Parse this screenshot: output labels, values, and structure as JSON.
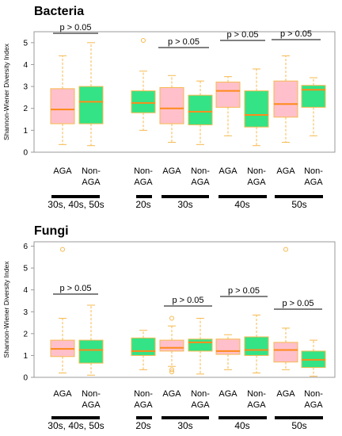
{
  "colors": {
    "aga_fill": "#ffc0cb",
    "nonaga_fill": "#33e386",
    "box_edge": "#f6b94e",
    "whisker": "#f6b94e",
    "median": "#ff8a1a",
    "outlier": "#f6b94e",
    "frame": "#999999"
  },
  "chart_data": [
    {
      "type": "box",
      "title": "Bacteria",
      "ylabel": "Shannon-Wiener Diversity Index",
      "ylim": [
        0,
        5.5
      ],
      "yticks": [
        "0",
        "1",
        "2",
        "3",
        "4",
        "5"
      ],
      "boxes": [
        {
          "label": "AGA",
          "group": "aga",
          "min": 0.35,
          "q1": 1.3,
          "median": 1.95,
          "q3": 2.9,
          "max": 4.4,
          "outliers": []
        },
        {
          "label": "Non-AGA",
          "group": "nonaga",
          "min": 0.3,
          "q1": 1.3,
          "median": 2.3,
          "q3": 3.0,
          "max": 5.0,
          "outliers": []
        },
        {
          "label": "Non-AGA",
          "group": "nonaga",
          "min": 1.0,
          "q1": 1.8,
          "median": 2.25,
          "q3": 2.8,
          "max": 3.7,
          "outliers": [
            5.1
          ]
        },
        {
          "label": "AGA",
          "group": "aga",
          "min": 0.45,
          "q1": 1.3,
          "median": 2.0,
          "q3": 2.95,
          "max": 3.5,
          "outliers": []
        },
        {
          "label": "Non-AGA",
          "group": "nonaga",
          "min": 0.35,
          "q1": 1.25,
          "median": 1.85,
          "q3": 2.6,
          "max": 3.25,
          "outliers": []
        },
        {
          "label": "AGA",
          "group": "aga",
          "min": 0.75,
          "q1": 2.05,
          "median": 2.8,
          "q3": 3.2,
          "max": 3.45,
          "outliers": []
        },
        {
          "label": "Non-AGA",
          "group": "nonaga",
          "min": 0.3,
          "q1": 1.15,
          "median": 1.7,
          "q3": 2.8,
          "max": 3.8,
          "outliers": []
        },
        {
          "label": "AGA",
          "group": "aga",
          "min": 0.45,
          "q1": 1.6,
          "median": 2.2,
          "q3": 3.25,
          "max": 4.4,
          "outliers": []
        },
        {
          "label": "Non-AGA",
          "group": "nonaga",
          "min": 0.75,
          "q1": 2.05,
          "median": 2.85,
          "q3": 3.05,
          "max": 3.4,
          "outliers": []
        }
      ],
      "comparisons": [
        "p > 0.05",
        "p > 0.05",
        "p > 0.05",
        "p > 0.05"
      ],
      "groups": [
        "30s, 40s, 50s",
        "20s",
        "30s",
        "40s",
        "50s"
      ]
    },
    {
      "type": "box",
      "title": "Fungi",
      "ylabel": "Shannon-Wiener Diversity Index",
      "ylim": [
        0,
        6.2
      ],
      "yticks": [
        "0",
        "1",
        "2",
        "3",
        "4",
        "5",
        "6"
      ],
      "boxes": [
        {
          "label": "AGA",
          "group": "aga",
          "min": 0.2,
          "q1": 0.95,
          "median": 1.3,
          "q3": 1.7,
          "max": 2.7,
          "outliers": [
            5.85
          ]
        },
        {
          "label": "Non-AGA",
          "group": "nonaga",
          "min": 0.1,
          "q1": 0.65,
          "median": 1.25,
          "q3": 1.7,
          "max": 3.3,
          "outliers": []
        },
        {
          "label": "Non-AGA",
          "group": "nonaga",
          "min": 0.35,
          "q1": 1.0,
          "median": 1.2,
          "q3": 1.8,
          "max": 2.15,
          "outliers": []
        },
        {
          "label": "AGA",
          "group": "aga",
          "min": 0.5,
          "q1": 1.2,
          "median": 1.35,
          "q3": 1.7,
          "max": 2.35,
          "outliers": [
            2.7,
            0.35,
            0.25
          ]
        },
        {
          "label": "Non-AGA",
          "group": "nonaga",
          "min": 0.15,
          "q1": 1.2,
          "median": 1.6,
          "q3": 1.75,
          "max": 2.7,
          "outliers": []
        },
        {
          "label": "AGA",
          "group": "aga",
          "min": 0.35,
          "q1": 1.05,
          "median": 1.2,
          "q3": 1.75,
          "max": 1.95,
          "outliers": []
        },
        {
          "label": "Non-AGA",
          "group": "nonaga",
          "min": 0.2,
          "q1": 1.0,
          "median": 1.25,
          "q3": 1.85,
          "max": 2.85,
          "outliers": []
        },
        {
          "label": "AGA",
          "group": "aga",
          "min": 0.35,
          "q1": 0.7,
          "median": 1.25,
          "q3": 1.6,
          "max": 2.25,
          "outliers": [
            5.85
          ]
        },
        {
          "label": "Non-AGA",
          "group": "nonaga",
          "min": 0.05,
          "q1": 0.45,
          "median": 0.8,
          "q3": 1.2,
          "max": 1.7,
          "outliers": []
        }
      ],
      "comparisons": [
        "p > 0.05",
        "p > 0.05",
        "p > 0.05",
        "p > 0.05"
      ],
      "groups": [
        "30s, 40s, 50s",
        "20s",
        "30s",
        "40s",
        "50s"
      ]
    }
  ]
}
